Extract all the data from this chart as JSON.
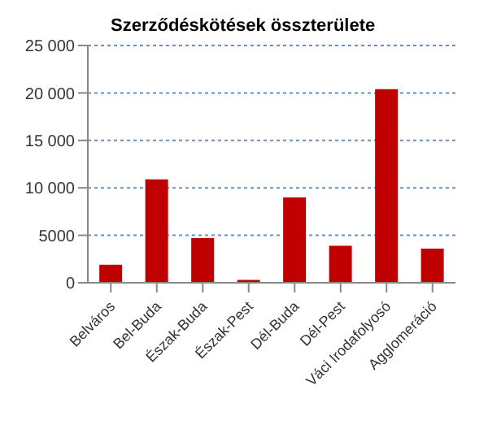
{
  "chart_data": {
    "type": "bar",
    "title": "Szerződéskötések összterülete",
    "categories": [
      "Belváros",
      "Bel-Buda",
      "Észak-Buda",
      "Észak-Pest",
      "Dél-Buda",
      "Dél-Pest",
      "Váci Irodafolyosó",
      "Agglomeráció"
    ],
    "values": [
      1900,
      10900,
      4700,
      300,
      9000,
      3900,
      20400,
      3600
    ],
    "color": "#c00000",
    "ylim": [
      0,
      25000
    ],
    "yticks": [
      0,
      {
        "value": 5000,
        "label": "5000"
      },
      {
        "value": 10000,
        "label": "10 000"
      },
      {
        "value": 15000,
        "label": "15 000"
      },
      {
        "value": 20000,
        "label": "20 000"
      },
      {
        "value": 25000,
        "label": "25 000"
      }
    ],
    "grid": "y"
  }
}
